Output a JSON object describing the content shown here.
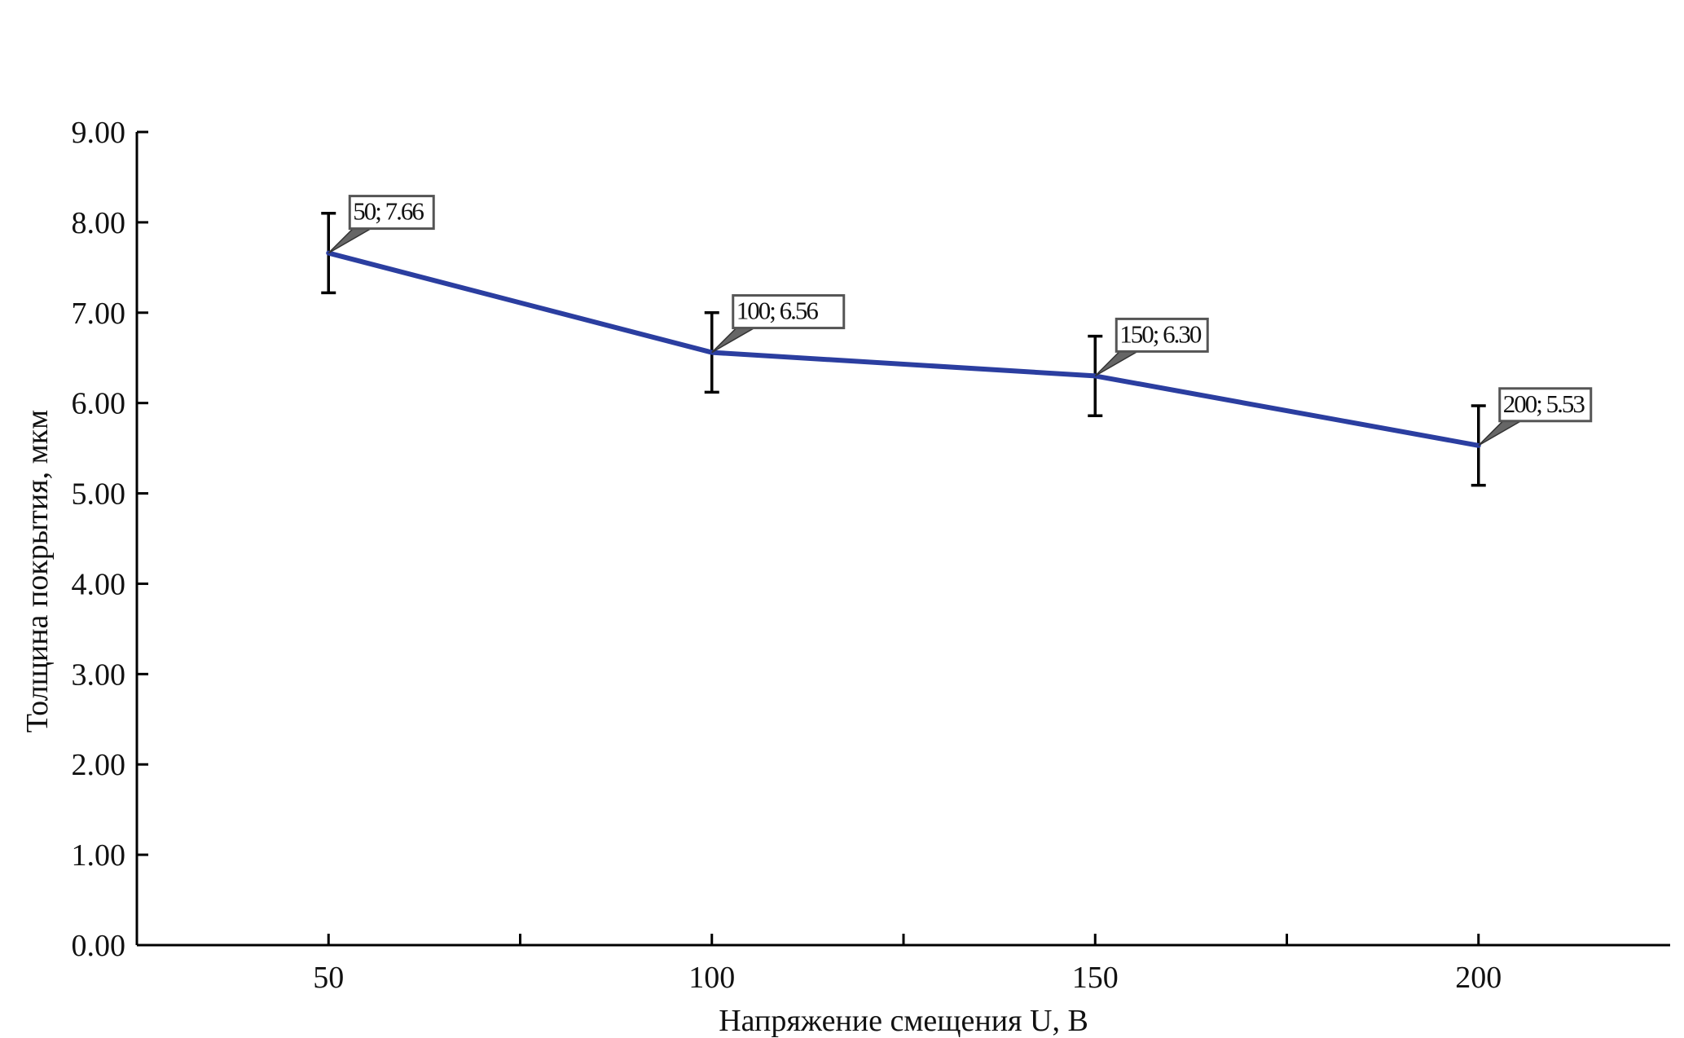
{
  "chart_data": {
    "type": "line",
    "title": "",
    "xlabel": "Напряжение смещения U, В",
    "ylabel": "Толщина покрытия, мкм",
    "x": [
      50,
      100,
      150,
      200
    ],
    "series": [
      {
        "values": [
          7.66,
          6.56,
          6.3,
          5.53
        ],
        "error_minus": [
          0.44,
          0.44,
          0.44,
          0.44
        ],
        "error_plus": [
          0.44,
          0.44,
          0.44,
          0.44
        ],
        "color": "#2b3ea0"
      }
    ],
    "point_labels": [
      "50; 7.66",
      "100; 6.56",
      "150; 6.30",
      "200; 5.53"
    ],
    "xlim": [
      25,
      225
    ],
    "ylim": [
      0,
      9
    ],
    "x_major_ticks": [
      50,
      100,
      150,
      200
    ],
    "x_minor_ticks": [
      75,
      125,
      175
    ],
    "x_tick_labels": [
      "50",
      "100",
      "150",
      "200"
    ],
    "y_ticks": [
      0,
      1,
      2,
      3,
      4,
      5,
      6,
      7,
      8,
      9
    ],
    "y_tick_labels": [
      "0.00",
      "1.00",
      "2.00",
      "3.00",
      "4.00",
      "5.00",
      "6.00",
      "7.00",
      "8.00",
      "9.00"
    ],
    "grid": false,
    "legend": "none"
  }
}
